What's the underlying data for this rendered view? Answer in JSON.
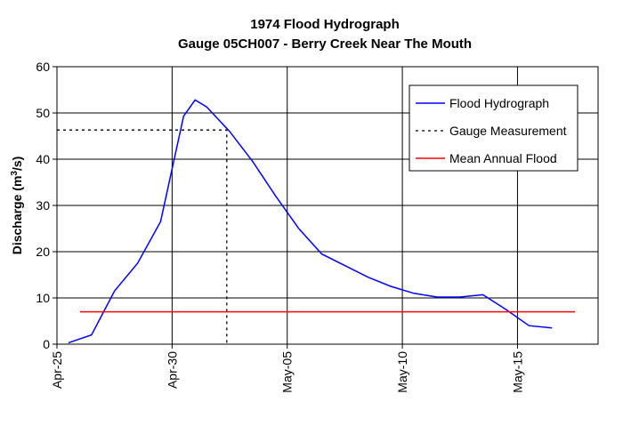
{
  "chart_data": {
    "type": "line",
    "title": "1974 Flood Hydrograph",
    "subtitle": "Gauge 05CH007 - Berry Creek Near The Mouth",
    "ylabel_main": "Discharge (m",
    "ylabel_sup": "3",
    "ylabel_tail": "/s)",
    "xlabel": "",
    "x_tick_labels": [
      "Apr-25",
      "Apr-30",
      "May-05",
      "May-10",
      "May-15"
    ],
    "x_range": [
      "1974-04-25",
      "1974-05-18"
    ],
    "ylim": [
      0,
      60
    ],
    "y_ticks": [
      0,
      10,
      20,
      30,
      40,
      50,
      60
    ],
    "grid": true,
    "legend_position": "top-right",
    "series": [
      {
        "name": "Flood Hydrograph",
        "style": "solid",
        "color": "#0000ff",
        "points": [
          {
            "x": "1974-04-25T12:00",
            "y": 0.3
          },
          {
            "x": "1974-04-26T12:00",
            "y": 2.0
          },
          {
            "x": "1974-04-27T12:00",
            "y": 11.5
          },
          {
            "x": "1974-04-28T12:00",
            "y": 17.5
          },
          {
            "x": "1974-04-29T12:00",
            "y": 26.5
          },
          {
            "x": "1974-04-30T12:00",
            "y": 49.3
          },
          {
            "x": "1974-05-01T00:00",
            "y": 52.8
          },
          {
            "x": "1974-05-01T12:00",
            "y": 51.3
          },
          {
            "x": "1974-05-02T12:00",
            "y": 46.0
          },
          {
            "x": "1974-05-03T12:00",
            "y": 39.5
          },
          {
            "x": "1974-05-04T12:00",
            "y": 32.0
          },
          {
            "x": "1974-05-05T12:00",
            "y": 25.0
          },
          {
            "x": "1974-05-06T12:00",
            "y": 19.5
          },
          {
            "x": "1974-05-07T12:00",
            "y": 17.0
          },
          {
            "x": "1974-05-08T12:00",
            "y": 14.5
          },
          {
            "x": "1974-05-09T12:00",
            "y": 12.5
          },
          {
            "x": "1974-05-10T12:00",
            "y": 11.0
          },
          {
            "x": "1974-05-11T12:00",
            "y": 10.2
          },
          {
            "x": "1974-05-12T12:00",
            "y": 10.2
          },
          {
            "x": "1974-05-13T12:00",
            "y": 10.7
          },
          {
            "x": "1974-05-14T12:00",
            "y": 7.5
          },
          {
            "x": "1974-05-15T12:00",
            "y": 4.0
          },
          {
            "x": "1974-05-16T12:00",
            "y": 3.5
          }
        ]
      },
      {
        "name": "Gauge Measurement",
        "style": "dotted",
        "color": "#000000",
        "points": [
          {
            "x": "1974-04-25",
            "y": 46.3
          },
          {
            "x": "1974-05-02T09:00",
            "y": 46.3
          },
          {
            "x": "1974-05-02T09:00",
            "y": 0
          }
        ]
      },
      {
        "name": "Mean Annual Flood",
        "style": "solid",
        "color": "#ff0000",
        "points": [
          {
            "x": "1974-04-26",
            "y": 7.0
          },
          {
            "x": "1974-05-17T12:00",
            "y": 7.0
          }
        ]
      }
    ]
  }
}
